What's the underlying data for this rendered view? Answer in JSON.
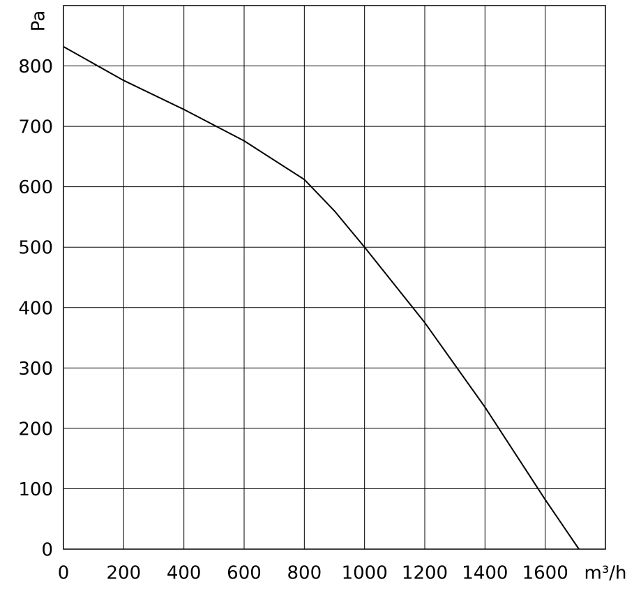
{
  "chart_data": {
    "type": "line",
    "x_label": "m³/h",
    "y_label": "Pa",
    "x": [
      0,
      200,
      400,
      600,
      800,
      900,
      1000,
      1200,
      1300,
      1400,
      1600,
      1712
    ],
    "series": [
      {
        "color": "#000000",
        "values": [
          832,
          776,
          728,
          676,
          612,
          560,
          500,
          375,
          305,
          235,
          82,
          0
        ]
      }
    ],
    "xlim": [
      0,
      1800
    ],
    "ylim": [
      0,
      900
    ],
    "xticks": [
      0,
      200,
      400,
      600,
      800,
      1000,
      1200,
      1400,
      1600
    ],
    "yticks": [
      0,
      100,
      200,
      300,
      400,
      500,
      600,
      700,
      800
    ],
    "grid": true
  }
}
